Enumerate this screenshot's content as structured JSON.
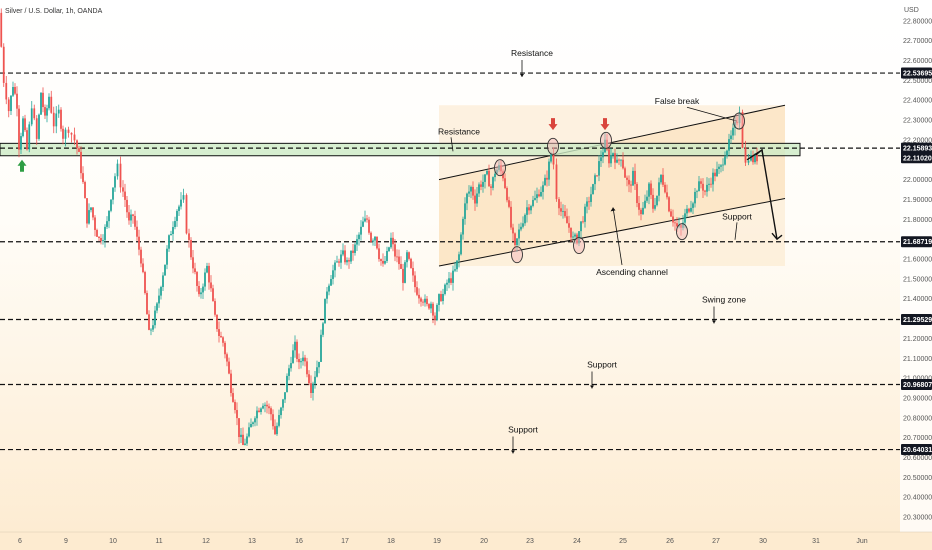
{
  "chart_data": {
    "type": "candlestick",
    "title": "Silver / U.S. Dollar, 1h, OANDA",
    "currency": "USD",
    "grid": false,
    "colors": {
      "up": "#26a69a",
      "down": "#ef5350",
      "level_line": "#111111",
      "zone_fill": "#cdebc6",
      "channel_fill": "#fbe2bf",
      "label_box": "#131722",
      "arrow_up": "#2e9e44",
      "arrow_down": "#d9443c",
      "circle_fill": "#f4b7b7"
    },
    "x_axis": {
      "index_range": [
        0,
        932
      ],
      "ticks": [
        {
          "label": "6",
          "x": 20
        },
        {
          "label": "9",
          "x": 66
        },
        {
          "label": "10",
          "x": 113
        },
        {
          "label": "11",
          "x": 159
        },
        {
          "label": "12",
          "x": 206
        },
        {
          "label": "13",
          "x": 252
        },
        {
          "label": "16",
          "x": 299
        },
        {
          "label": "17",
          "x": 345
        },
        {
          "label": "18",
          "x": 391
        },
        {
          "label": "19",
          "x": 437
        },
        {
          "label": "20",
          "x": 484
        },
        {
          "label": "23",
          "x": 530
        },
        {
          "label": "24",
          "x": 577
        },
        {
          "label": "25",
          "x": 623
        },
        {
          "label": "26",
          "x": 670
        },
        {
          "label": "27",
          "x": 716
        },
        {
          "label": "30",
          "x": 763
        },
        {
          "label": "31",
          "x": 816
        },
        {
          "label": "Jun",
          "x": 862
        }
      ]
    },
    "y_axis": {
      "range": [
        20.235,
        22.905
      ],
      "ticks": [
        "22.80000",
        "22.70000",
        "22.60000",
        "22.50000",
        "22.40000",
        "22.30000",
        "22.20000",
        "22.00000",
        "21.90000",
        "21.80000",
        "21.70000",
        "21.60000",
        "21.50000",
        "21.40000",
        "21.30000",
        "21.20000",
        "21.10000",
        "21.00000",
        "20.90000",
        "20.80000",
        "20.70000",
        "20.60000",
        "20.50000",
        "20.40000",
        "20.30000"
      ],
      "tick_values": [
        22.8,
        22.7,
        22.6,
        22.5,
        22.4,
        22.3,
        22.2,
        22.0,
        21.9,
        21.8,
        21.7,
        21.6,
        21.5,
        21.4,
        21.3,
        21.2,
        21.1,
        21.0,
        20.9,
        20.8,
        20.7,
        20.6,
        20.5,
        20.4,
        20.3
      ]
    },
    "levels": [
      {
        "value": 22.53695,
        "label": "22.53695",
        "annotation": "Resistance",
        "note_x": 532
      },
      {
        "value": 22.15893,
        "label": "22.15893",
        "annotation": "",
        "note_x": 0
      },
      {
        "value": 21.68719,
        "label": "21.68719",
        "annotation": "",
        "note_x": 0
      },
      {
        "value": 21.29529,
        "label": "21.29529",
        "annotation": "Swing zone",
        "note_x": 724
      },
      {
        "value": 20.96807,
        "label": "20.96807",
        "annotation": "Support",
        "note_x": 602
      },
      {
        "value": 20.64031,
        "label": "20.64031",
        "annotation": "Support",
        "note_x": 523
      }
    ],
    "current_price": {
      "value": 22.1102,
      "label": "22.11020"
    },
    "resistance_zone": {
      "top": 22.1829,
      "bottom": 22.1204,
      "annotation": "Resistance",
      "note_x": 459
    },
    "channel": {
      "upper": [
        {
          "x": 439,
          "y": 22.0
        },
        {
          "x": 785,
          "y": 22.375
        }
      ],
      "lower": [
        {
          "x": 439,
          "y": 21.565
        },
        {
          "x": 785,
          "y": 21.905
        }
      ],
      "annotation": "Ascending channel"
    },
    "false_break": {
      "annotation": "False break",
      "from": {
        "x": 677,
        "y": 22.395
      },
      "to": {
        "x": 737,
        "y": 22.295
      }
    },
    "support_note": {
      "annotation": "Support",
      "x": 737,
      "y": 21.815
    },
    "projection": {
      "points": [
        {
          "x": 747,
          "y": 22.1
        },
        {
          "x": 762,
          "y": 22.15
        },
        {
          "x": 777,
          "y": 21.7
        }
      ]
    },
    "arrows_up": [
      {
        "x": 22,
        "y": 22.07
      }
    ],
    "arrows_down": [
      {
        "x": 553,
        "y": 22.28
      },
      {
        "x": 605,
        "y": 22.28
      }
    ],
    "circles": [
      {
        "x": 500,
        "y": 22.06
      },
      {
        "x": 517,
        "y": 21.622
      },
      {
        "x": 553,
        "y": 22.168
      },
      {
        "x": 579,
        "y": 21.668
      },
      {
        "x": 606,
        "y": 22.198
      },
      {
        "x": 682,
        "y": 21.738
      },
      {
        "x": 739,
        "y": 22.295
      }
    ],
    "price_path": [
      [
        0,
        22.84
      ],
      [
        5,
        22.5
      ],
      [
        10,
        22.35
      ],
      [
        14,
        22.48
      ],
      [
        18,
        22.38
      ],
      [
        20,
        22.17
      ],
      [
        24,
        22.3
      ],
      [
        28,
        22.15
      ],
      [
        33,
        22.38
      ],
      [
        38,
        22.2
      ],
      [
        42,
        22.44
      ],
      [
        46,
        22.3
      ],
      [
        50,
        22.42
      ],
      [
        55,
        22.28
      ],
      [
        60,
        22.34
      ],
      [
        64,
        22.22
      ],
      [
        70,
        22.26
      ],
      [
        76,
        22.2
      ],
      [
        80,
        22.12
      ],
      [
        84,
        21.98
      ],
      [
        88,
        21.8
      ],
      [
        92,
        21.86
      ],
      [
        96,
        21.76
      ],
      [
        100,
        21.7
      ],
      [
        104,
        21.72
      ],
      [
        108,
        21.78
      ],
      [
        112,
        21.92
      ],
      [
        116,
        22.02
      ],
      [
        119,
        22.06
      ],
      [
        122,
        21.98
      ],
      [
        126,
        21.9
      ],
      [
        130,
        21.78
      ],
      [
        134,
        21.82
      ],
      [
        138,
        21.7
      ],
      [
        142,
        21.6
      ],
      [
        146,
        21.42
      ],
      [
        150,
        21.22
      ],
      [
        154,
        21.28
      ],
      [
        158,
        21.36
      ],
      [
        162,
        21.48
      ],
      [
        166,
        21.58
      ],
      [
        170,
        21.7
      ],
      [
        174,
        21.78
      ],
      [
        178,
        21.85
      ],
      [
        182,
        21.88
      ],
      [
        185,
        21.9
      ],
      [
        188,
        21.75
      ],
      [
        192,
        21.62
      ],
      [
        196,
        21.52
      ],
      [
        200,
        21.4
      ],
      [
        204,
        21.48
      ],
      [
        208,
        21.56
      ],
      [
        212,
        21.44
      ],
      [
        216,
        21.3
      ],
      [
        220,
        21.22
      ],
      [
        224,
        21.18
      ],
      [
        228,
        21.08
      ],
      [
        232,
        20.95
      ],
      [
        236,
        20.86
      ],
      [
        240,
        20.72
      ],
      [
        244,
        20.66
      ],
      [
        248,
        20.7
      ],
      [
        252,
        20.76
      ],
      [
        256,
        20.82
      ],
      [
        260,
        20.85
      ],
      [
        264,
        20.88
      ],
      [
        268,
        20.86
      ],
      [
        272,
        20.82
      ],
      [
        276,
        20.72
      ],
      [
        280,
        20.8
      ],
      [
        284,
        20.88
      ],
      [
        288,
        21.0
      ],
      [
        292,
        21.1
      ],
      [
        296,
        21.16
      ],
      [
        300,
        21.06
      ],
      [
        304,
        21.12
      ],
      [
        308,
        21.04
      ],
      [
        312,
        20.95
      ],
      [
        316,
        21.02
      ],
      [
        320,
        21.1
      ],
      [
        324,
        21.3
      ],
      [
        328,
        21.45
      ],
      [
        332,
        21.52
      ],
      [
        336,
        21.56
      ],
      [
        340,
        21.6
      ],
      [
        344,
        21.62
      ],
      [
        348,
        21.58
      ],
      [
        352,
        21.62
      ],
      [
        356,
        21.66
      ],
      [
        360,
        21.72
      ],
      [
        364,
        21.78
      ],
      [
        368,
        21.8
      ],
      [
        372,
        21.7
      ],
      [
        376,
        21.72
      ],
      [
        380,
        21.62
      ],
      [
        384,
        21.56
      ],
      [
        388,
        21.62
      ],
      [
        392,
        21.7
      ],
      [
        396,
        21.62
      ],
      [
        400,
        21.58
      ],
      [
        404,
        21.5
      ],
      [
        408,
        21.62
      ],
      [
        412,
        21.54
      ],
      [
        416,
        21.46
      ],
      [
        420,
        21.42
      ],
      [
        424,
        21.4
      ],
      [
        428,
        21.36
      ],
      [
        432,
        21.38
      ],
      [
        436,
        21.3
      ],
      [
        440,
        21.4
      ],
      [
        444,
        21.42
      ],
      [
        448,
        21.48
      ],
      [
        452,
        21.5
      ],
      [
        456,
        21.54
      ],
      [
        460,
        21.62
      ],
      [
        464,
        21.82
      ],
      [
        468,
        21.92
      ],
      [
        472,
        21.96
      ],
      [
        476,
        21.9
      ],
      [
        480,
        21.97
      ],
      [
        484,
        21.99
      ],
      [
        488,
        22.02
      ],
      [
        492,
        21.96
      ],
      [
        496,
        22.04
      ],
      [
        500,
        22.06
      ],
      [
        504,
        22.02
      ],
      [
        508,
        21.92
      ],
      [
        512,
        21.76
      ],
      [
        516,
        21.65
      ],
      [
        520,
        21.74
      ],
      [
        524,
        21.8
      ],
      [
        528,
        21.86
      ],
      [
        532,
        21.88
      ],
      [
        536,
        21.9
      ],
      [
        540,
        21.94
      ],
      [
        544,
        21.96
      ],
      [
        548,
        22.02
      ],
      [
        552,
        22.13
      ],
      [
        555,
        22.08
      ],
      [
        558,
        21.92
      ],
      [
        562,
        21.84
      ],
      [
        566,
        21.8
      ],
      [
        570,
        21.76
      ],
      [
        574,
        21.7
      ],
      [
        578,
        21.7
      ],
      [
        582,
        21.78
      ],
      [
        586,
        21.84
      ],
      [
        590,
        21.9
      ],
      [
        594,
        21.96
      ],
      [
        598,
        22.04
      ],
      [
        602,
        22.12
      ],
      [
        606,
        22.18
      ],
      [
        610,
        22.1
      ],
      [
        614,
        22.14
      ],
      [
        618,
        22.08
      ],
      [
        622,
        22.12
      ],
      [
        626,
        22.02
      ],
      [
        630,
        21.96
      ],
      [
        634,
        22.02
      ],
      [
        638,
        21.9
      ],
      [
        642,
        21.82
      ],
      [
        646,
        21.88
      ],
      [
        650,
        21.96
      ],
      [
        654,
        21.86
      ],
      [
        658,
        21.92
      ],
      [
        662,
        22.02
      ],
      [
        666,
        21.96
      ],
      [
        670,
        21.86
      ],
      [
        674,
        21.8
      ],
      [
        678,
        21.76
      ],
      [
        682,
        21.75
      ],
      [
        686,
        21.82
      ],
      [
        690,
        21.86
      ],
      [
        694,
        21.9
      ],
      [
        698,
        21.96
      ],
      [
        702,
        21.98
      ],
      [
        706,
        21.94
      ],
      [
        710,
        21.98
      ],
      [
        714,
        22.02
      ],
      [
        718,
        22.04
      ],
      [
        722,
        22.06
      ],
      [
        726,
        22.14
      ],
      [
        730,
        22.18
      ],
      [
        734,
        22.24
      ],
      [
        738,
        22.3
      ],
      [
        741,
        22.36
      ],
      [
        744,
        22.18
      ],
      [
        747,
        22.08
      ],
      [
        750,
        22.12
      ],
      [
        754,
        22.1
      ],
      [
        758,
        22.11
      ]
    ]
  }
}
